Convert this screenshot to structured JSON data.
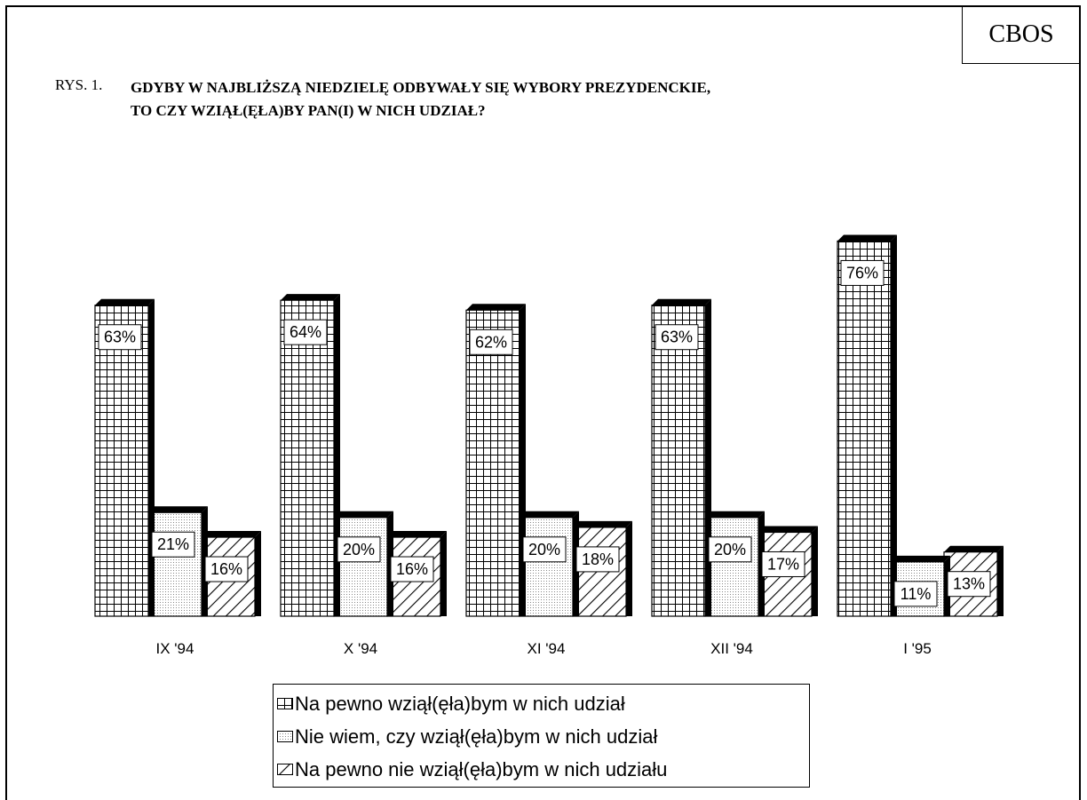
{
  "header": {
    "brand": "CBOS",
    "figure_label": "RYS. 1.",
    "title_line1": "GDYBY W NAJBLIŻSZĄ NIEDZIELĘ ODBYWAŁY SIĘ WYBORY PREZYDENCKIE,",
    "title_line2": "TO CZY WZIĄŁ(ĘŁA)BY PAN(I) W NICH UDZIAŁ?"
  },
  "chart_data": {
    "type": "bar",
    "title": "GDYBY W NAJBLIŻSZĄ NIEDZIELĘ ODBYWAŁY SIĘ WYBORY PREZYDENCKIE, TO CZY WZIĄŁ(ĘŁA)BY PAN(I) W NICH UDZIAŁ?",
    "categories": [
      "IX '94",
      "X '94",
      "XI '94",
      "XII '94",
      "I '95"
    ],
    "series": [
      {
        "name": "Na pewno wziął(ęła)bym w nich udział",
        "values": [
          63,
          64,
          62,
          63,
          76
        ]
      },
      {
        "name": "Nie wiem, czy wziął(ęła)bym w nich udział",
        "values": [
          21,
          20,
          20,
          20,
          11
        ]
      },
      {
        "name": "Na pewno nie wziął(ęła)bym w nich udziału",
        "values": [
          16,
          16,
          18,
          17,
          13
        ]
      }
    ],
    "value_suffix": "%",
    "legend_position": "bottom",
    "grid": false,
    "ylim": [
      0,
      80
    ]
  },
  "colors": {
    "ink": "#000000",
    "dot_fill": "#c8c8c8"
  }
}
